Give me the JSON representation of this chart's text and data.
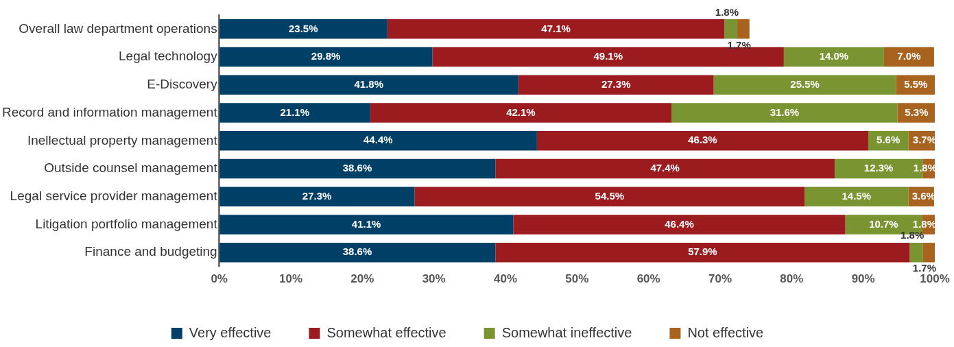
{
  "chart_data": {
    "type": "bar",
    "orientation": "horizontal",
    "stacked": true,
    "legend": "bottom",
    "grid": false,
    "categories": [
      "Overall law department operations",
      "Legal technology",
      "E-Discovery",
      "Record and information management",
      "Inellectual property management",
      "Outside counsel management",
      "Legal service provider management",
      "Litigation portfolio management",
      "Finance and budgeting"
    ],
    "series": [
      {
        "name": "Very effective",
        "color": "#003f66",
        "values": [
          23.5,
          29.8,
          41.8,
          21.1,
          44.4,
          38.6,
          27.3,
          41.1,
          38.6
        ],
        "value_labels": [
          "23.5%",
          "29.8%",
          "41.8%",
          "21.1%",
          "44.4%",
          "38.6%",
          "27.3%",
          "41.1%",
          "38.6%"
        ]
      },
      {
        "name": "Somewhat effective",
        "color": "#9b1b1f",
        "values": [
          47.1,
          49.1,
          27.3,
          42.1,
          46.3,
          47.4,
          54.5,
          46.4,
          57.9
        ],
        "value_labels": [
          "47.1%",
          "49.1%",
          "27.3%",
          "42.1%",
          "46.3%",
          "47.4%",
          "54.5%",
          "46.4%",
          "57.9%"
        ]
      },
      {
        "name": "Somewhat ineffective",
        "color": "#7b9432",
        "values": [
          1.8,
          14.0,
          25.5,
          31.6,
          5.6,
          12.3,
          14.5,
          10.7,
          1.8
        ],
        "value_labels": [
          "1.8%",
          "14.0%",
          "25.5%",
          "31.6%",
          "5.6%",
          "12.3%",
          "14.5%",
          "10.7%",
          "1.8%"
        ]
      },
      {
        "name": "Not effective",
        "color": "#a8641f",
        "values": [
          1.7,
          7.0,
          5.5,
          5.3,
          3.7,
          1.8,
          3.6,
          1.8,
          1.7
        ],
        "value_labels": [
          "1.7%",
          "7.0%",
          "5.5%",
          "5.3%",
          "3.7%",
          "1.8%",
          "3.6%",
          "1.8%",
          "1.7%"
        ]
      }
    ],
    "xlim": [
      0,
      100
    ],
    "xticks": [
      {
        "value": 0,
        "label": "0%"
      },
      {
        "value": 10,
        "label": "10%"
      },
      {
        "value": 20,
        "label": "20%"
      },
      {
        "value": 30,
        "label": "30%"
      },
      {
        "value": 40,
        "label": "40%"
      },
      {
        "value": 50,
        "label": "50%"
      },
      {
        "value": 60,
        "label": "60%"
      },
      {
        "value": 70,
        "label": "70%"
      },
      {
        "value": 80,
        "label": "80%"
      },
      {
        "value": 90,
        "label": "90%"
      },
      {
        "value": 100,
        "label": "100%"
      }
    ]
  }
}
